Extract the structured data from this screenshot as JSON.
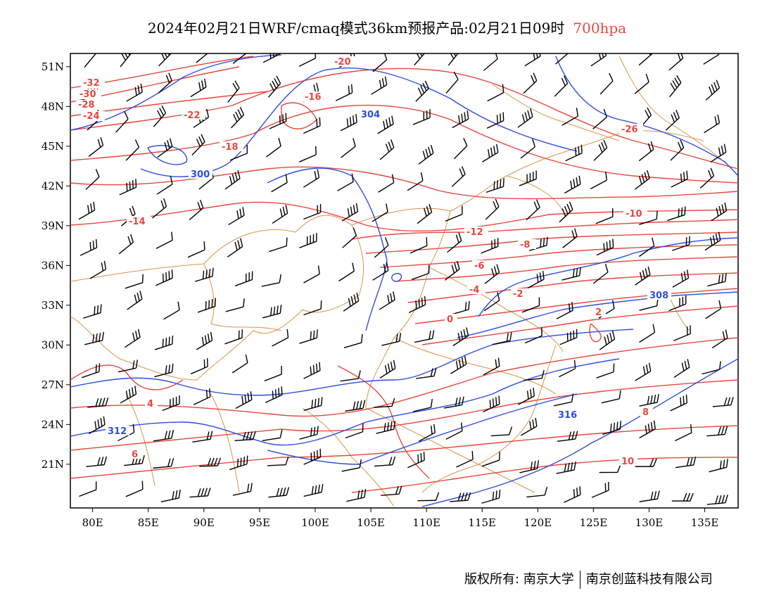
{
  "title": {
    "main": "2024年02月21日WRF/cmaq模式36km预报产品:02月21日09时",
    "level": "700hpa"
  },
  "colors": {
    "temperature_contours": "#e8473f",
    "height_contours": "#2e4de0",
    "wind_barbs": "#000000",
    "boundaries": "#d9944a",
    "level_text": "#e8473f"
  },
  "axes": {
    "lat_labels": [
      "51N",
      "48N",
      "45N",
      "42N",
      "39N",
      "36N",
      "33N",
      "30N",
      "27N",
      "24N",
      "21N"
    ],
    "lon_labels": [
      "80E",
      "85E",
      "90E",
      "95E",
      "100E",
      "105E",
      "110E",
      "115E",
      "120E",
      "125E",
      "130E",
      "135E"
    ],
    "lon_range": [
      78,
      138
    ],
    "lat_range": [
      17.7,
      52
    ]
  },
  "temperature_labels": [
    "-32",
    "-30",
    "-28",
    "-26",
    "-24",
    "-22",
    "-20",
    "-18",
    "-16",
    "-14",
    "-12",
    "-10",
    "-8",
    "-6",
    "-4",
    "-2",
    "0",
    "2",
    "4",
    "6",
    "8",
    "10"
  ],
  "height_labels": [
    "300",
    "304",
    "308",
    "312",
    "316"
  ],
  "footer": {
    "copyright": "版权所有: 南京大学",
    "company": "南京创蓝科技有限公司"
  }
}
